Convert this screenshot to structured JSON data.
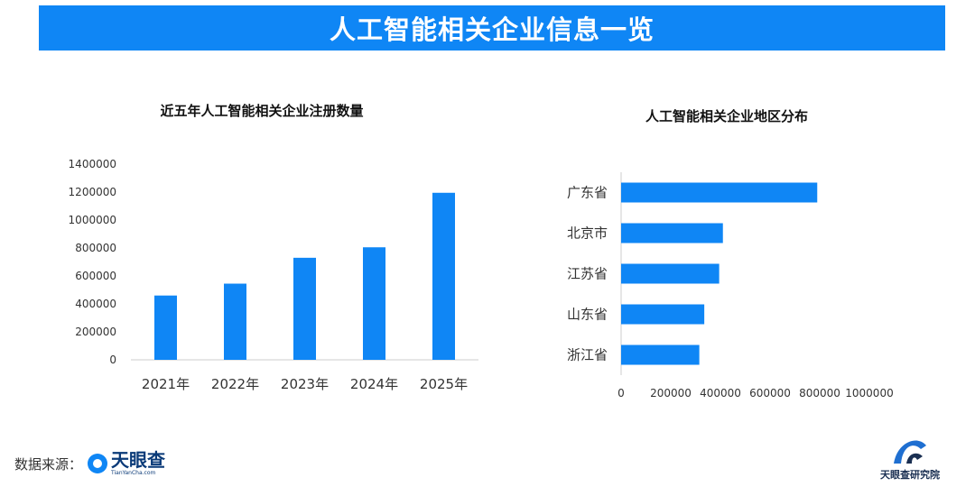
{
  "banner": {
    "title": "人工智能相关企业信息一览"
  },
  "footer": {
    "source_label": "数据来源：",
    "source_logo": "天眼查",
    "source_logo_sub": "TianYanCha.com",
    "corner_logo": "天眼查研究院"
  },
  "colors": {
    "accent": "#0f86f5",
    "axis": "#cccccc"
  },
  "chart_data": [
    {
      "type": "bar",
      "title": "近五年人工智能相关企业注册数量",
      "categories": [
        "2021年",
        "2022年",
        "2023年",
        "2024年",
        "2025年"
      ],
      "values": [
        460000,
        545000,
        730000,
        805000,
        1195000
      ],
      "ylim": [
        0,
        1400000
      ],
      "yticks": [
        "0",
        "200000",
        "400000",
        "600000",
        "800000",
        "1000000",
        "1200000",
        "1400000"
      ],
      "xlabel": "",
      "ylabel": "",
      "grid": false
    },
    {
      "type": "bar",
      "orientation": "horizontal",
      "title": "人工智能相关企业地区分布",
      "categories": [
        "广东省",
        "北京市",
        "江苏省",
        "山东省",
        "浙江省"
      ],
      "values": [
        790000,
        410000,
        395000,
        335000,
        315000
      ],
      "xlim": [
        0,
        1000000
      ],
      "xticks": [
        "0",
        "200000",
        "400000",
        "600000",
        "800000",
        "1000000"
      ],
      "xlabel": "",
      "ylabel": "",
      "grid": false
    }
  ]
}
